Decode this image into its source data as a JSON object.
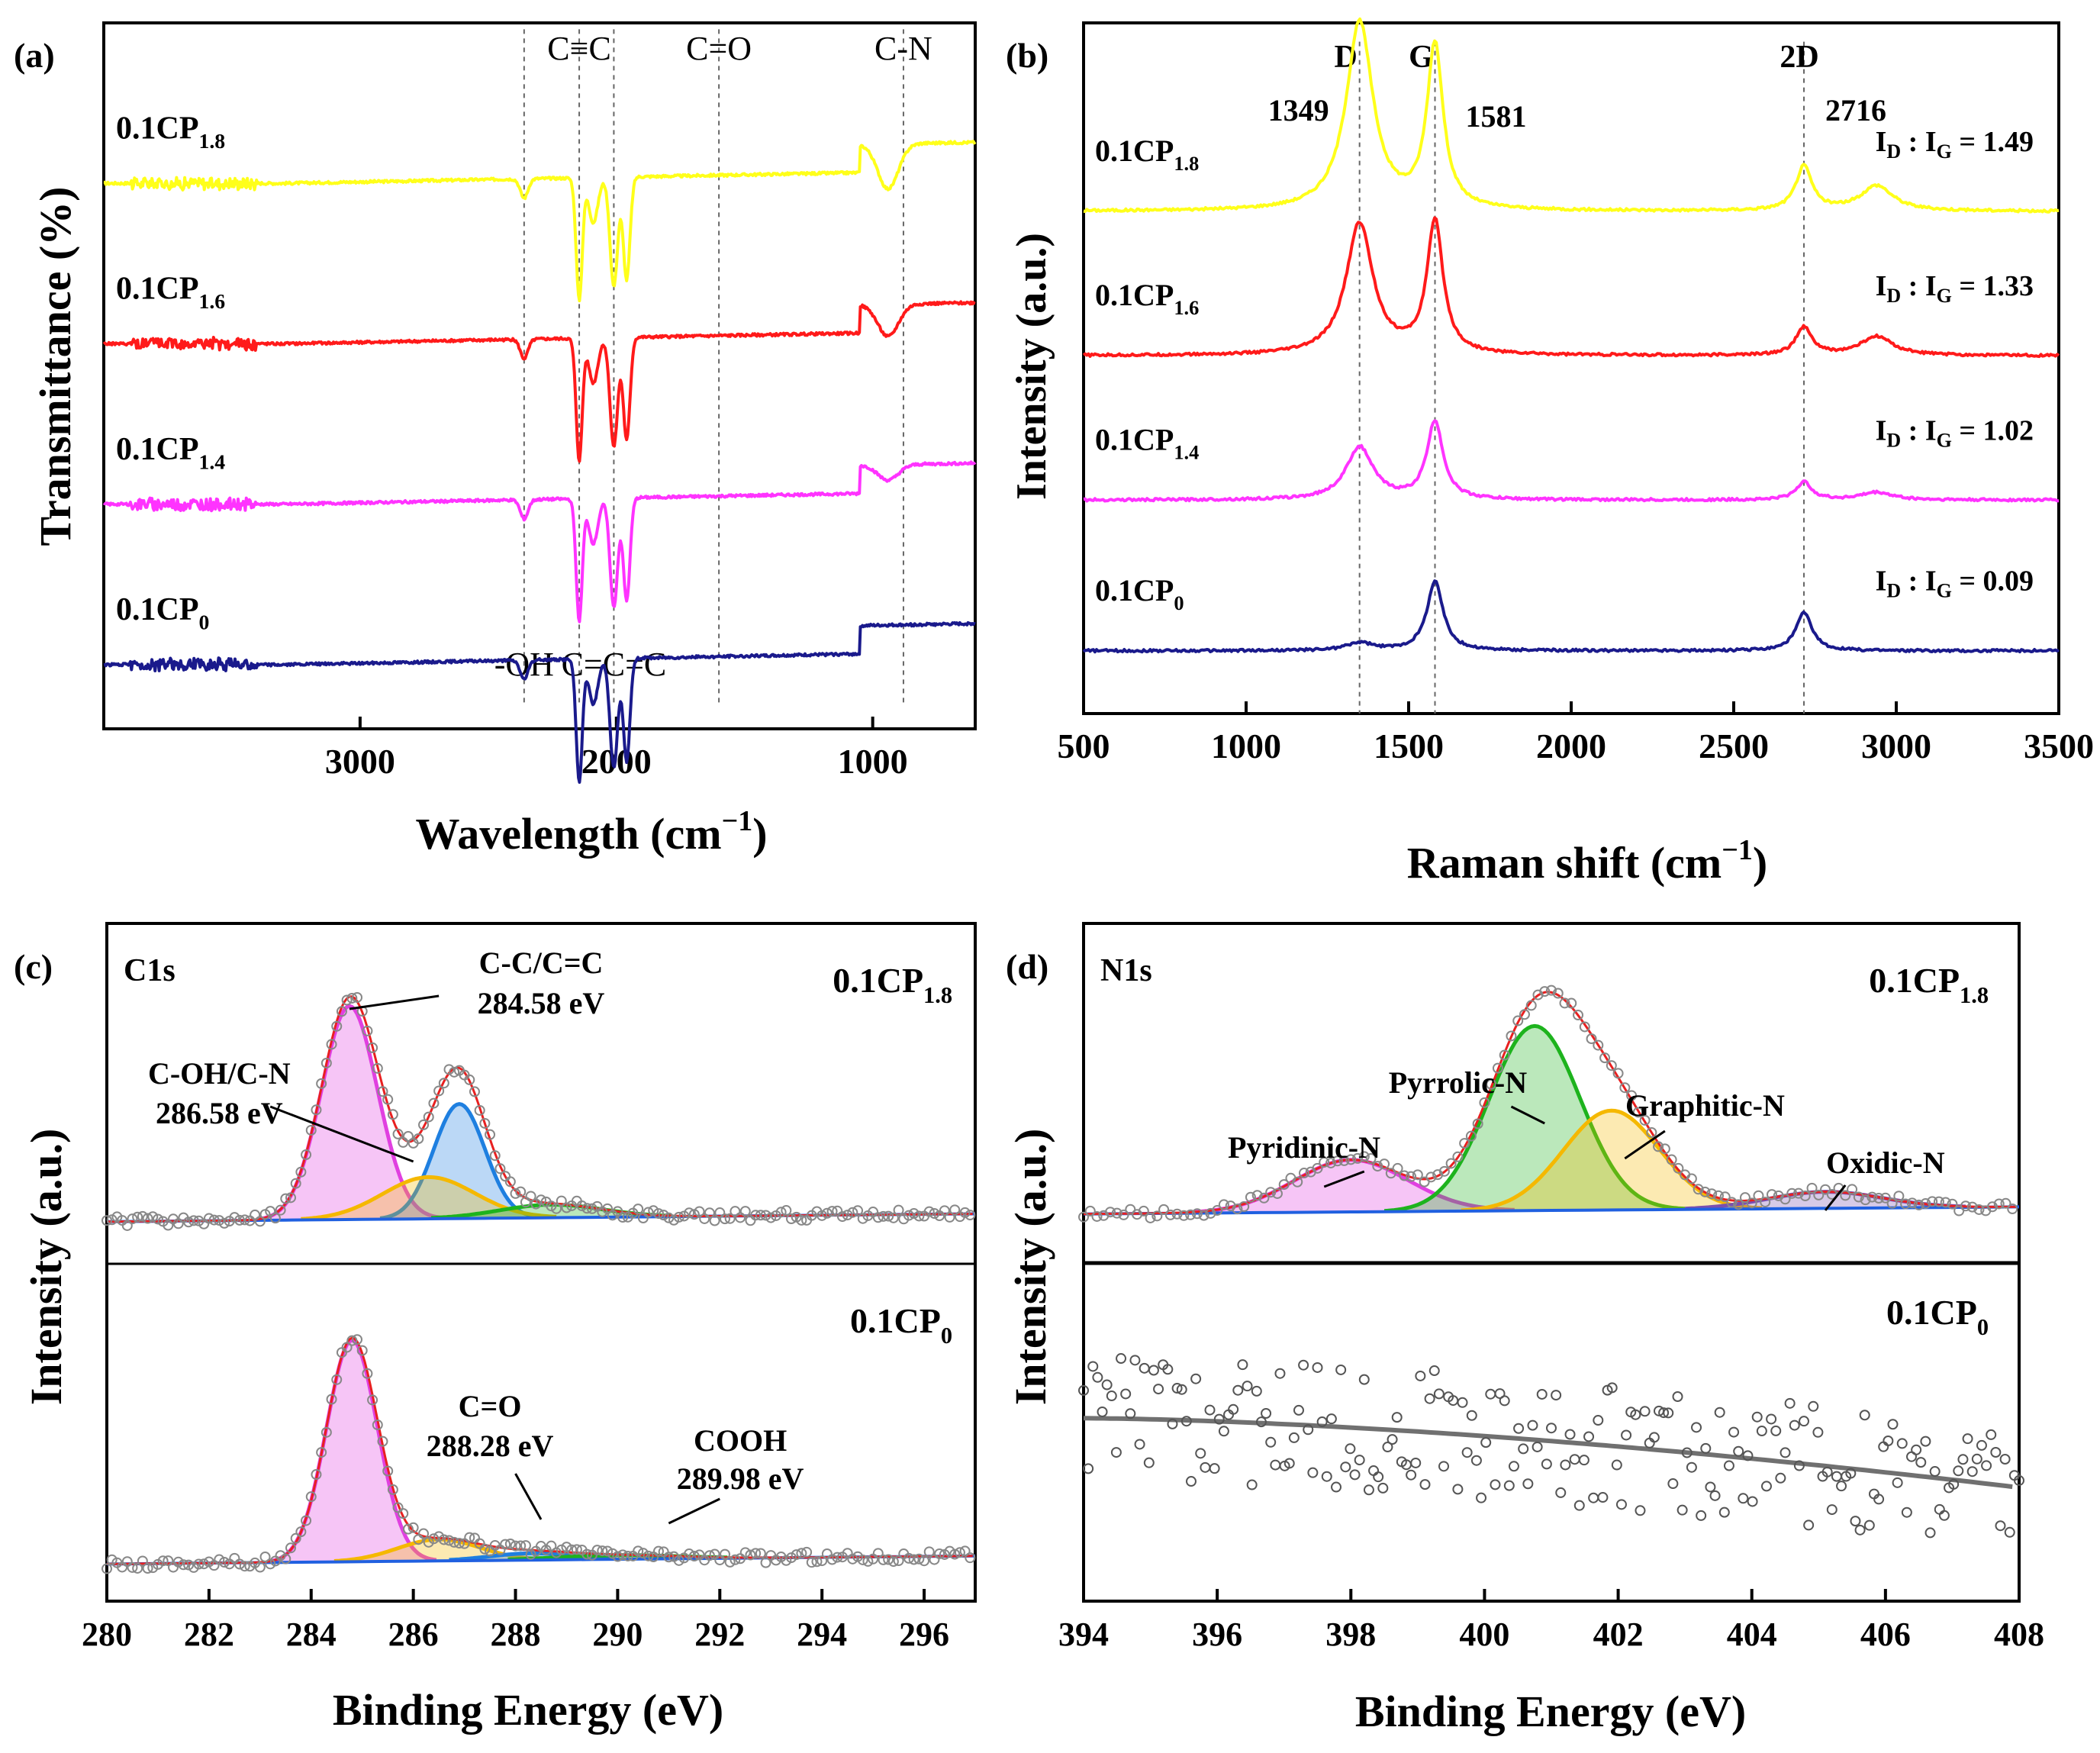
{
  "colors": {
    "yellow": "#FFFF1A",
    "red": "#FF1A1A",
    "magenta": "#FF33FF",
    "navy": "#1A1A8C",
    "pink_fill": "#E040E0",
    "blue_fill": "#1E7FE0",
    "orange_fill": "#F5B800",
    "green_fill": "#1DB31D",
    "envelope": "#E82020",
    "baseline": "#2060E0",
    "purple": "#7A4FB0",
    "grey_fit": "#707070",
    "guide": "#666666"
  },
  "chart_data": [
    {
      "panel": "(a)",
      "type": "line",
      "title": "",
      "xlabel": "Wavelength (cm",
      "xlabel_sup": "−1",
      "xlabel_close": ")",
      "ylabel": "Transmittance (%)",
      "xlim": [
        4000,
        600
      ],
      "ylim": [
        -0.5,
        5.0
      ],
      "xticks": [
        3000,
        2000,
        1000
      ],
      "grid": false,
      "series": [
        {
          "name": "0.1CP",
          "sub": "1.8",
          "color": "yellow",
          "offset": 3.75
        },
        {
          "name": "0.1CP",
          "sub": "1.6",
          "color": "red",
          "offset": 2.5
        },
        {
          "name": "0.1CP",
          "sub": "1.4",
          "color": "magenta",
          "offset": 1.25
        },
        {
          "name": "0.1CP",
          "sub": "0",
          "color": "navy",
          "offset": 0.0
        }
      ],
      "spectrum_features_cm-1": [
        {
          "x": 2360,
          "depth": 0.15,
          "width": 15
        },
        {
          "x": 2145,
          "depth": 0.95,
          "width": 12
        },
        {
          "x": 2090,
          "depth": 0.35,
          "width": 18
        },
        {
          "x": 2010,
          "depth": 0.85,
          "width": 15
        },
        {
          "x": 1960,
          "depth": 0.8,
          "width": 13
        }
      ],
      "guides_x": [
        2360,
        2145,
        2010,
        1600,
        880
      ],
      "annotations": [
        {
          "text": "C≡C",
          "x": 2145,
          "pos": "top"
        },
        {
          "text": "C=O",
          "x": 1600,
          "pos": "top"
        },
        {
          "text": "C-N",
          "x": 880,
          "pos": "top"
        },
        {
          "text": "-OH",
          "x": 2360,
          "pos": "bottom"
        },
        {
          "text": "C=C=C",
          "x": 2010,
          "pos": "bottom"
        }
      ]
    },
    {
      "panel": "(b)",
      "type": "line",
      "title": "",
      "xlabel": "Raman shift (cm",
      "xlabel_sup": "−1",
      "xlabel_close": ")",
      "ylabel": "Intensity (a.u.)",
      "xlim": [
        500,
        3500
      ],
      "ylim": [
        -0.5,
        5.0
      ],
      "xticks": [
        500,
        1000,
        1500,
        2000,
        2500,
        3000,
        3500
      ],
      "grid": false,
      "peaks_labels": [
        {
          "text": "D",
          "x": 1349
        },
        {
          "text": "G",
          "x": 1581
        },
        {
          "text": "2D",
          "x": 2716
        }
      ],
      "peak_values": [
        "1349",
        "1581",
        "2716"
      ],
      "guides_x": [
        1349,
        1581,
        2716
      ],
      "series": [
        {
          "name": "0.1CP",
          "sub": "1.8",
          "color": "yellow",
          "offset": 3.5,
          "D": 1.5,
          "G": 1.3,
          "D2": 0.35,
          "shoulder": 0.2,
          "ratio_text": "1.49"
        },
        {
          "name": "0.1CP",
          "sub": "1.6",
          "color": "red",
          "offset": 2.35,
          "D": 1.05,
          "G": 1.05,
          "D2": 0.22,
          "shoulder": 0.15,
          "ratio_text": "1.33"
        },
        {
          "name": "0.1CP",
          "sub": "1.4",
          "color": "magenta",
          "offset": 1.2,
          "D": 0.42,
          "G": 0.62,
          "D2": 0.14,
          "shoulder": 0.06,
          "ratio_text": "1.02"
        },
        {
          "name": "0.1CP",
          "sub": "0",
          "color": "navy",
          "offset": 0.0,
          "D": 0.06,
          "G": 0.55,
          "D2": 0.3,
          "shoulder": 0.0,
          "ratio_text": "0.09"
        }
      ],
      "ratio_label": {
        "i": "I",
        "d": "D",
        "sep": " : ",
        "g": "G",
        "eq": " = "
      }
    },
    {
      "panel": "(c)",
      "type": "line",
      "xlabel": "Binding Energy (eV)",
      "ylabel": "Intensity (a.u.)",
      "xlim": [
        280,
        297
      ],
      "xticks": [
        280,
        282,
        284,
        286,
        288,
        290,
        292,
        294,
        296
      ],
      "region": "C1s",
      "subplots": [
        {
          "sample": "0.1CP",
          "sub": "1.8",
          "components": [
            {
              "center": 284.75,
              "height": 0.82,
              "sigma": 0.55,
              "color": "pink_fill"
            },
            {
              "center": 286.9,
              "height": 0.44,
              "sigma": 0.5,
              "color": "blue_fill"
            },
            {
              "center": 286.3,
              "height": 0.16,
              "sigma": 0.9,
              "color": "orange_fill"
            },
            {
              "center": 288.7,
              "height": 0.05,
              "sigma": 1.0,
              "color": "green_fill"
            }
          ],
          "annotations": [
            {
              "line1": "C-C/C=C",
              "line2": "284.58 eV",
              "at": 284.75
            },
            {
              "line1": "C-OH/C-N",
              "line2": "286.58 eV",
              "at": 286.0
            }
          ]
        },
        {
          "sample": "0.1CP",
          "sub": "0",
          "components": [
            {
              "center": 284.8,
              "height": 0.82,
              "sigma": 0.5,
              "color": "pink_fill"
            },
            {
              "center": 286.5,
              "height": 0.08,
              "sigma": 0.8,
              "color": "orange_fill"
            },
            {
              "center": 288.3,
              "height": 0.025,
              "sigma": 0.8,
              "color": "blue_fill"
            },
            {
              "center": 290.0,
              "height": 0.015,
              "sigma": 1.2,
              "color": "green_fill"
            }
          ],
          "annotations": [
            {
              "line1": "C=O",
              "line2": "288.28 eV",
              "at": 288.5
            },
            {
              "line1": "COOH",
              "line2": "289.98 eV",
              "at": 291.0
            }
          ]
        }
      ]
    },
    {
      "panel": "(d)",
      "type": "line",
      "xlabel": "Binding Energy (eV)",
      "ylabel": "Intensity (a.u.)",
      "xlim": [
        394,
        408
      ],
      "xticks": [
        394,
        396,
        398,
        400,
        402,
        404,
        406,
        408
      ],
      "region": "N1s",
      "subplots": [
        {
          "sample": "0.1CP",
          "sub": "1.8",
          "components": [
            {
              "name": "Pyridinic-N",
              "center": 398.0,
              "height": 0.22,
              "sigma": 0.85,
              "color": "pink_fill"
            },
            {
              "name": "Pyrrolic-N",
              "center": 400.75,
              "height": 0.78,
              "sigma": 0.68,
              "color": "green_fill"
            },
            {
              "name": "Graphitic-N",
              "center": 401.9,
              "height": 0.42,
              "sigma": 0.72,
              "color": "orange_fill"
            },
            {
              "name": "Oxidic-N",
              "center": 405.1,
              "height": 0.07,
              "sigma": 0.85,
              "color": "purple"
            }
          ]
        },
        {
          "sample": "0.1CP",
          "sub": "0",
          "trend": [
            0.55,
            0.3
          ]
        }
      ]
    }
  ]
}
